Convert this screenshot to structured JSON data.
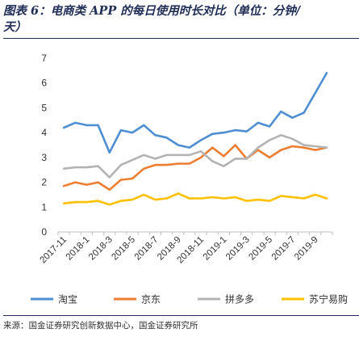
{
  "header": {
    "title_line1": "图表 6：电商类 APP 的每日使用时长对比（单位：分钟/",
    "title_line2": "天）"
  },
  "footer": {
    "source": "来源：国金证券研究创新数据中心，国金证券研究所"
  },
  "colors": {
    "taobao": "#4e8fd3",
    "jd": "#ed7d31",
    "pdd": "#b3b3b3",
    "suning": "#ffc000"
  },
  "chart_data": {
    "type": "line",
    "title": "图表 6：电商类 APP 的每日使用时长对比（单位：分钟/天）",
    "ylim": [
      0,
      7
    ],
    "yticks": [
      0,
      1,
      2,
      3,
      4,
      5,
      6,
      7
    ],
    "x": [
      "2017-11",
      "2017-12",
      "2018-1",
      "2018-2",
      "2018-3",
      "2018-4",
      "2018-5",
      "2018-6",
      "2018-7",
      "2018-8",
      "2018-9",
      "2018-10",
      "2018-11",
      "2018-12",
      "2019-1",
      "2019-2",
      "2019-3",
      "2019-4",
      "2019-5",
      "2019-6",
      "2019-7",
      "2019-8",
      "2019-9",
      "2019-10"
    ],
    "x_tick_labels": [
      "2017-11",
      "2018-1",
      "2018-3",
      "2018-5",
      "2018-7",
      "2018-9",
      "2018-11",
      "2019-1",
      "2019-3",
      "2019-5",
      "2019-7",
      "2019-9"
    ],
    "legend_position": "bottom",
    "grid": false,
    "series": [
      {
        "name": "淘宝",
        "color_key": "taobao",
        "values": [
          4.2,
          4.4,
          4.3,
          4.3,
          3.2,
          4.1,
          4.0,
          4.3,
          3.9,
          3.8,
          3.5,
          3.4,
          3.7,
          3.95,
          4.0,
          4.1,
          4.05,
          4.4,
          4.25,
          4.85,
          4.6,
          4.8,
          5.6,
          6.4
        ]
      },
      {
        "name": "京东",
        "color_key": "jd",
        "values": [
          1.85,
          2.0,
          1.9,
          2.0,
          1.7,
          2.1,
          2.15,
          2.55,
          2.7,
          2.7,
          2.75,
          2.75,
          3.0,
          3.4,
          3.05,
          3.5,
          2.95,
          3.3,
          3.0,
          3.3,
          3.45,
          3.4,
          3.3,
          3.4
        ]
      },
      {
        "name": "拼多多",
        "color_key": "pdd",
        "values": [
          2.55,
          2.6,
          2.6,
          2.65,
          2.2,
          2.7,
          2.9,
          3.1,
          2.95,
          3.1,
          3.1,
          3.1,
          3.25,
          2.85,
          2.65,
          2.95,
          2.95,
          3.4,
          3.7,
          3.9,
          3.75,
          3.5,
          3.45,
          3.4
        ]
      },
      {
        "name": "苏宁易购",
        "color_key": "suning",
        "values": [
          1.15,
          1.2,
          1.2,
          1.25,
          1.1,
          1.25,
          1.3,
          1.5,
          1.3,
          1.35,
          1.55,
          1.35,
          1.35,
          1.4,
          1.35,
          1.4,
          1.25,
          1.3,
          1.25,
          1.45,
          1.4,
          1.35,
          1.5,
          1.35
        ]
      }
    ]
  }
}
